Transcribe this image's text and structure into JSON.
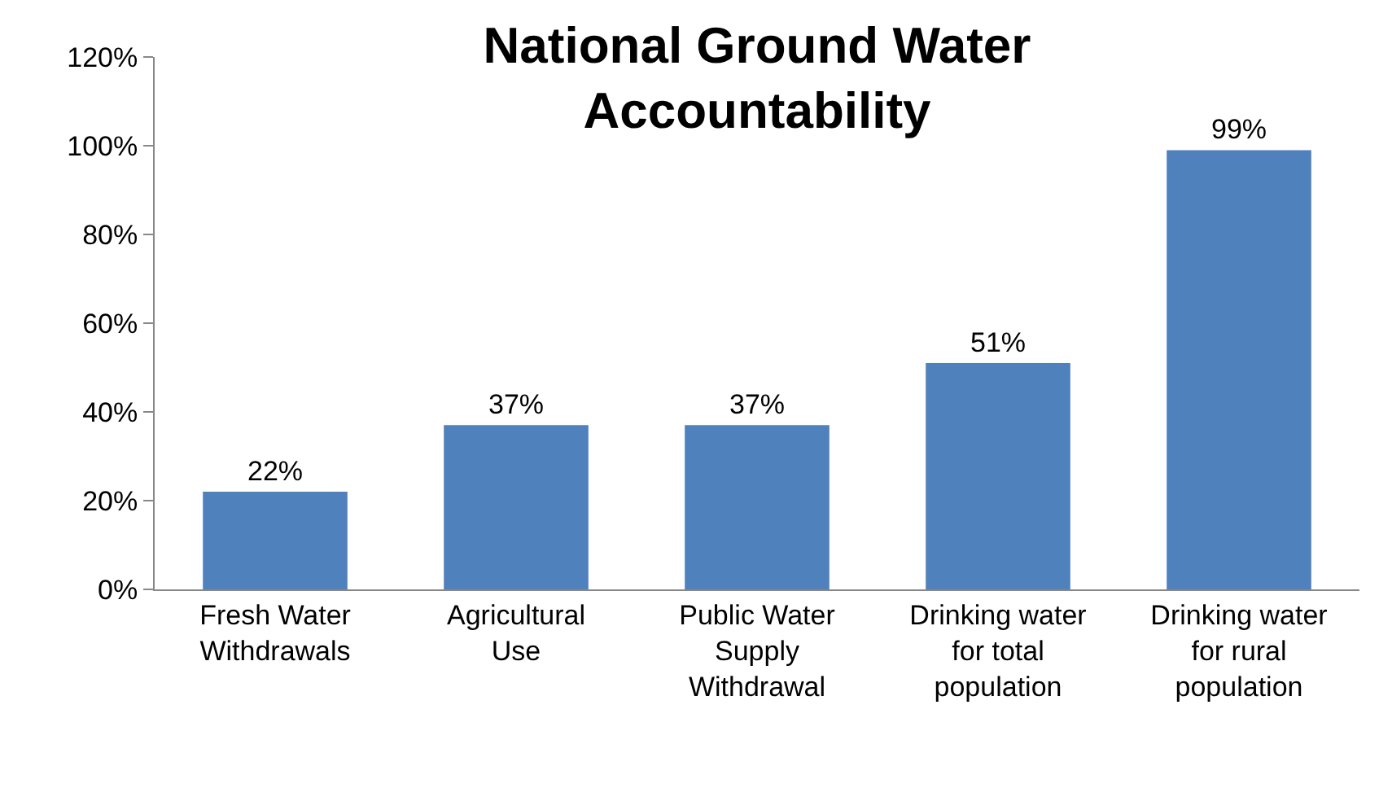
{
  "chart_data": {
    "type": "bar",
    "title": "National Ground Water Accountability",
    "categories": [
      "Fresh Water Withdrawals",
      "Agricultural Use",
      "Public Water Supply Withdrawal",
      "Drinking water for total population",
      "Drinking water for rural population"
    ],
    "values": [
      22,
      37,
      37,
      51,
      99
    ],
    "value_labels": [
      "22%",
      "37%",
      "37%",
      "51%",
      "99%"
    ],
    "color": "#4f81bd",
    "ylim": [
      0,
      120
    ],
    "yticks": [
      {
        "value": 0,
        "label": "0%"
      },
      {
        "value": 20,
        "label": "20%"
      },
      {
        "value": 40,
        "label": "40%"
      },
      {
        "value": 60,
        "label": "60%"
      },
      {
        "value": 80,
        "label": "80%"
      },
      {
        "value": 100,
        "label": "100%"
      },
      {
        "value": 120,
        "label": "120%"
      }
    ],
    "grid": false
  }
}
